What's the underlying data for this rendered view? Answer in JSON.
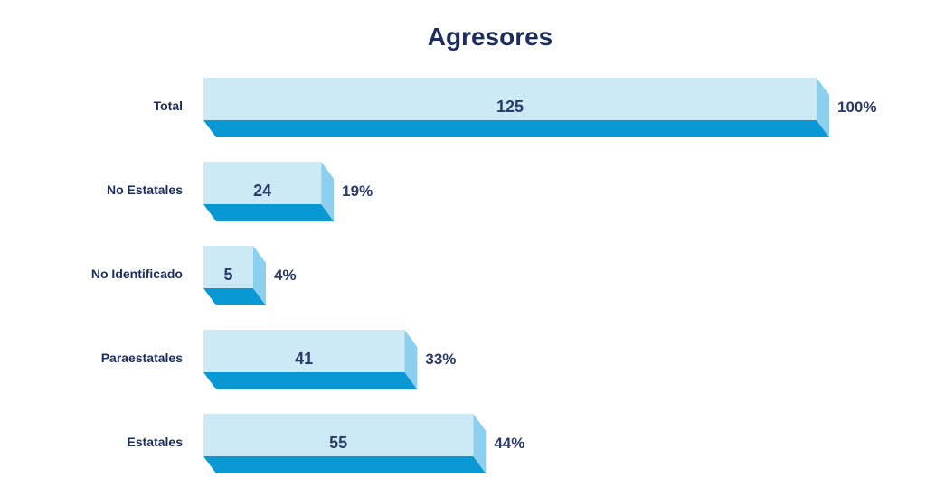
{
  "chart_data": {
    "type": "bar",
    "orientation": "horizontal",
    "title": "Agresores",
    "categories": [
      "Total",
      "No Estatales",
      "No Identificado",
      "Paraestatales",
      "Estatales"
    ],
    "values": [
      125,
      24,
      5,
      41,
      55
    ],
    "percent_labels": [
      "100%",
      "19%",
      "4%",
      "33%",
      "44%"
    ],
    "xlim": [
      0,
      125
    ],
    "xlabel": "",
    "ylabel": "",
    "grid": false,
    "legend": "none"
  },
  "colors": {
    "bar_front": "#cce9f6",
    "bar_side": "#8ccfee",
    "bar_bottom": "#0a98d5",
    "title": "#1c2d5e",
    "category_label": "#1c2d5e",
    "value_label": "#2b3a66",
    "percent_label": "#2b3a66"
  }
}
